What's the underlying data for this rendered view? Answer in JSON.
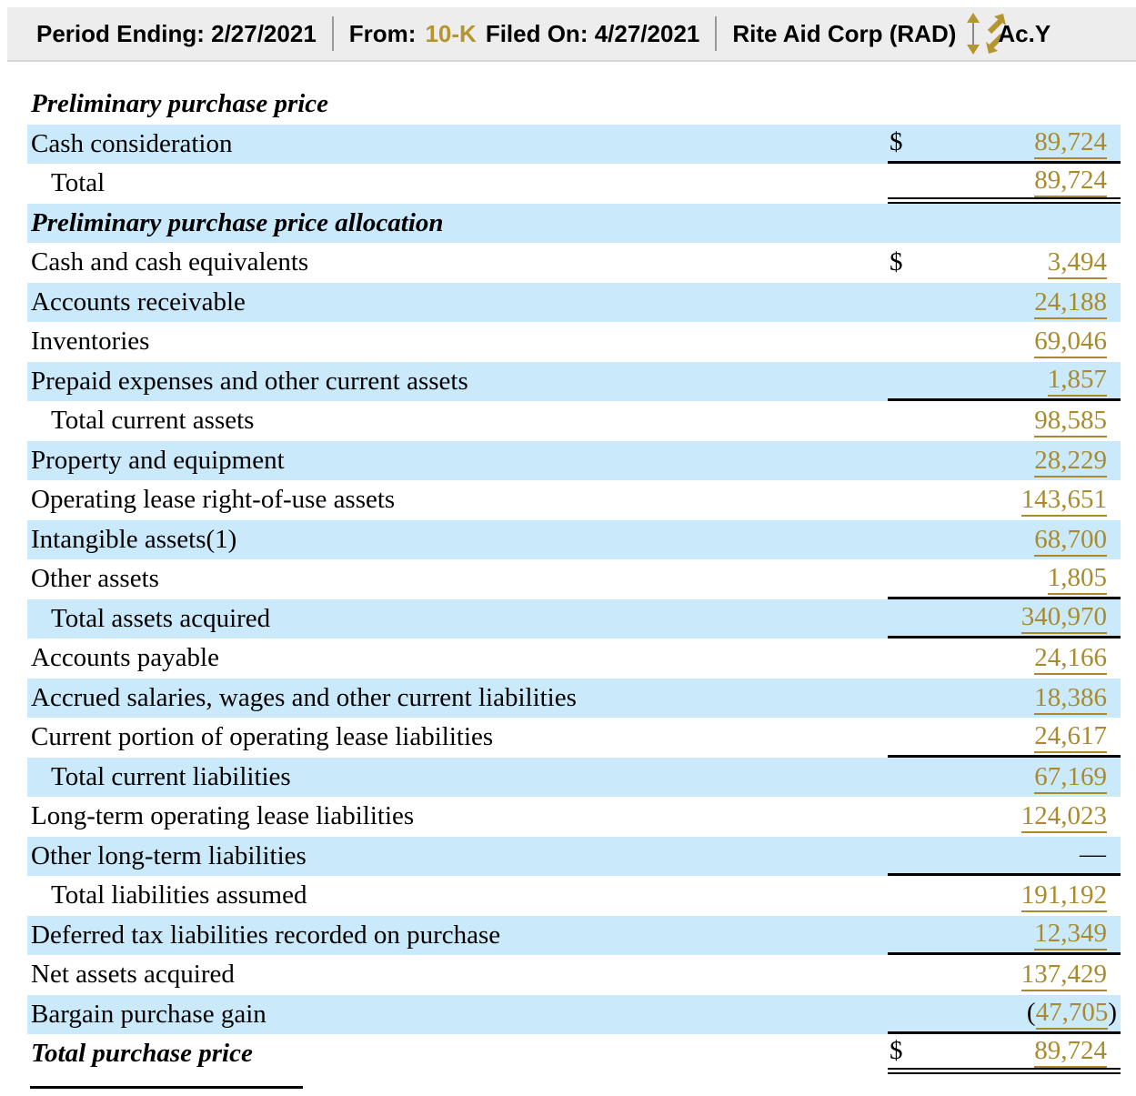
{
  "header": {
    "period_ending": "Period Ending: 2/27/2021",
    "from_label": "From:",
    "form_type": "10-K",
    "filed_on": "Filed On: 4/27/2021",
    "company": "Rite Aid Corp (RAD)",
    "truncated_text": "Ac.Y"
  },
  "colors": {
    "accent_gold": "#a98b2e",
    "header_gold": "#b5952f",
    "row_blue": "#cae9fb",
    "header_bar_bg": "#ededed"
  },
  "table": {
    "rows": [
      {
        "label": "Preliminary purchase price",
        "style": "section"
      },
      {
        "label": "Cash consideration",
        "dollar": "$",
        "value": "89,724",
        "border_bottom": "single"
      },
      {
        "label": "Total",
        "indent": true,
        "value": "89,724",
        "border_bottom": "double"
      },
      {
        "label": "Preliminary purchase price allocation",
        "style": "section"
      },
      {
        "label": "Cash and cash equivalents",
        "dollar": "$",
        "value": "3,494"
      },
      {
        "label": "Accounts receivable",
        "value": "24,188"
      },
      {
        "label": "Inventories",
        "value": "69,046"
      },
      {
        "label": "Prepaid expenses and other current assets",
        "value": "1,857",
        "border_bottom": "single"
      },
      {
        "label": "Total current assets",
        "indent": true,
        "value": "98,585"
      },
      {
        "label": "Property and equipment",
        "value": "28,229"
      },
      {
        "label": "Operating lease right-of-use assets",
        "value": "143,651"
      },
      {
        "label": "Intangible assets(1)",
        "value": "68,700"
      },
      {
        "label": "Other assets",
        "value": "1,805",
        "border_bottom": "single"
      },
      {
        "label": "Total assets acquired",
        "indent": true,
        "value": "340,970",
        "border_bottom": "single"
      },
      {
        "label": "Accounts payable",
        "value": "24,166"
      },
      {
        "label": "Accrued salaries, wages and other current liabilities",
        "value": "18,386"
      },
      {
        "label": "Current portion of operating lease liabilities",
        "value": "24,617",
        "border_bottom": "single"
      },
      {
        "label": "Total current liabilities",
        "indent": true,
        "value": "67,169"
      },
      {
        "label": "Long-term operating lease liabilities",
        "value": "124,023"
      },
      {
        "label": "Other long-term liabilities",
        "dash": "—",
        "border_bottom": "single"
      },
      {
        "label": "Total liabilities assumed",
        "indent": true,
        "value": "191,192"
      },
      {
        "label": "Deferred tax liabilities recorded on purchase",
        "value": "12,349",
        "border_bottom": "single"
      },
      {
        "label": "Net assets acquired",
        "value": "137,429"
      },
      {
        "label": "Bargain purchase gain",
        "value": "47,705",
        "paren": true,
        "border_bottom": "single"
      },
      {
        "label": "Total purchase price",
        "style": "section",
        "dollar": "$",
        "value": "89,724",
        "border_bottom": "double"
      }
    ]
  }
}
